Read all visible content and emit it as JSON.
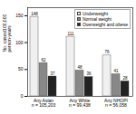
{
  "chart_data": {
    "type": "bar",
    "categories": [
      "Any Asian\nn = 105,203",
      "Any White\nn = 99,438",
      "Any NHOPI\nn = 56,058"
    ],
    "series": [
      {
        "name": "Underweight",
        "color": "#f0f0f0",
        "values": [
          148,
          111,
          76
        ]
      },
      {
        "name": "Normal weight",
        "color": "#888888",
        "values": [
          62,
          48,
          41
        ]
      },
      {
        "name": "Overweight and obese",
        "color": "#222222",
        "values": [
          37,
          36,
          28
        ]
      }
    ],
    "ylabel": "No. cases/100,000\nperson-years",
    "ylim": [
      0,
      165
    ],
    "yticks": [
      0,
      50,
      100,
      150
    ],
    "data_labels": true,
    "legend": "upper right",
    "grid": false
  }
}
